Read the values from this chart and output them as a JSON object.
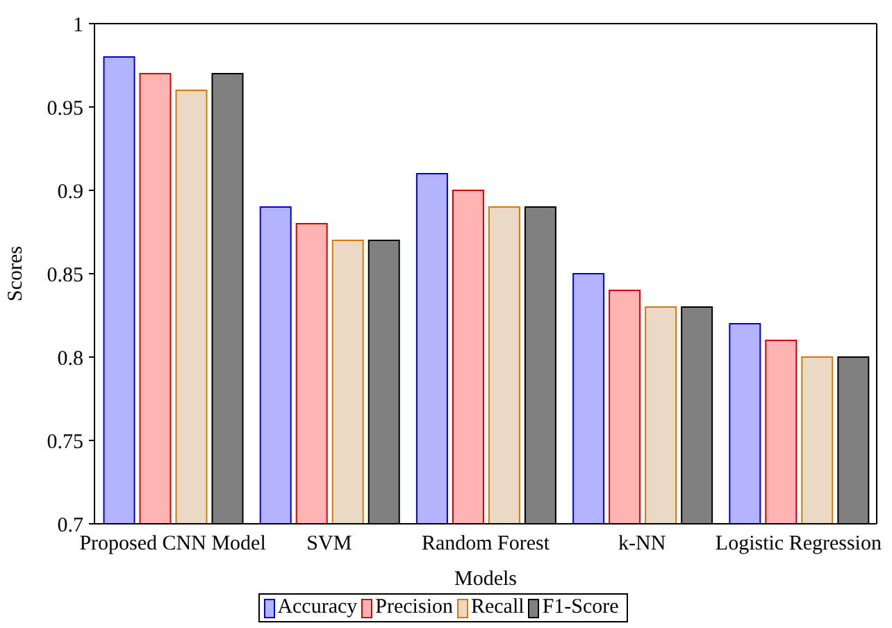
{
  "chart_data": {
    "type": "bar",
    "xlabel": "Models",
    "ylabel": "Scores",
    "categories": [
      "Proposed CNN Model",
      "SVM",
      "Random Forest",
      "k-NN",
      "Logistic Regression"
    ],
    "series": [
      {
        "name": "Accuracy",
        "color": "#b3b3ff",
        "values": [
          0.98,
          0.89,
          0.91,
          0.85,
          0.82
        ]
      },
      {
        "name": "Precision",
        "color": "#ffb3b3",
        "values": [
          0.97,
          0.88,
          0.9,
          0.84,
          0.81
        ]
      },
      {
        "name": "Recall",
        "color": "#ead9c4",
        "values": [
          0.96,
          0.87,
          0.89,
          0.83,
          0.8
        ]
      },
      {
        "name": "F1-Score",
        "color": "#808080",
        "values": [
          0.97,
          0.87,
          0.89,
          0.83,
          0.8
        ]
      }
    ],
    "ylim": [
      0.7,
      1
    ],
    "yticks": [
      0.7,
      0.75,
      0.8,
      0.85,
      0.9,
      0.95,
      1
    ],
    "grid": false,
    "legend": "bottom"
  }
}
